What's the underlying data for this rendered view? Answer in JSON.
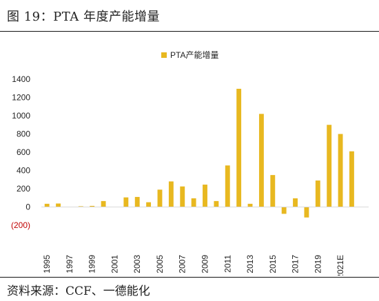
{
  "figure_title": "图 19：PTA 年度产能增量",
  "source_note": "资料来源：CCF、一德能化",
  "colors": {
    "bar": "#E8B820",
    "negative_tick": "#C00000",
    "axis": "#D9D9D9",
    "text": "#222222"
  },
  "chart_data": {
    "type": "bar",
    "legend": "PTA产能增量",
    "legend_position": "top-center",
    "grid": false,
    "ylim": [
      -200,
      1400
    ],
    "y_ticks": [
      -200,
      0,
      200,
      400,
      600,
      800,
      1000,
      1200,
      1400
    ],
    "y_tick_labels": [
      "(200)",
      "0",
      "200",
      "400",
      "600",
      "800",
      "1000",
      "1200",
      "1400"
    ],
    "categories": [
      "1995",
      "1996",
      "1997",
      "1998",
      "1999",
      "2000",
      "2001",
      "2002",
      "2003",
      "2004",
      "2005",
      "2006",
      "2007",
      "2008",
      "2009",
      "2010",
      "2011",
      "2012",
      "2013",
      "2014",
      "2015",
      "2016",
      "2017",
      "2018",
      "2019",
      "2020",
      "2021E",
      "2022E",
      "2023E"
    ],
    "x_tick_labels": [
      "1995",
      "",
      "1997",
      "",
      "1999",
      "",
      "2001",
      "",
      "2003",
      "",
      "2005",
      "",
      "2007",
      "",
      "2009",
      "",
      "2011",
      "",
      "2013",
      "",
      "2015",
      "",
      "2017",
      "",
      "2019",
      "",
      "2021E",
      "",
      ""
    ],
    "values": [
      35,
      38,
      0,
      8,
      12,
      65,
      0,
      105,
      110,
      52,
      190,
      280,
      225,
      95,
      245,
      65,
      455,
      1295,
      35,
      1020,
      350,
      -75,
      95,
      -115,
      290,
      900,
      800,
      610,
      0
    ]
  }
}
